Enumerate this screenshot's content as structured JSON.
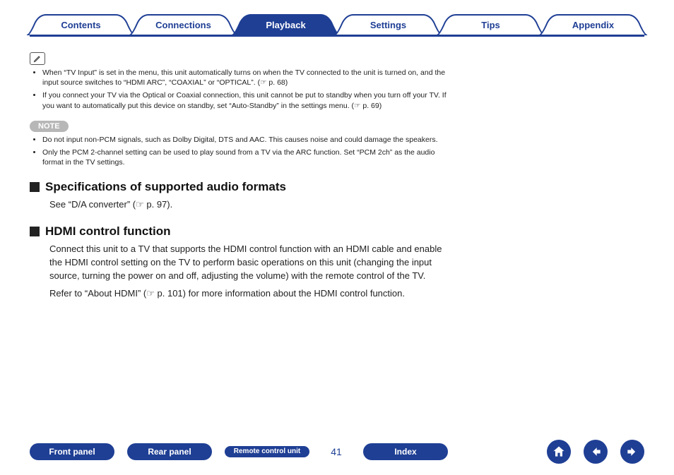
{
  "tabs": [
    {
      "label": "Contents",
      "active": false
    },
    {
      "label": "Connections",
      "active": false
    },
    {
      "label": "Playback",
      "active": true
    },
    {
      "label": "Settings",
      "active": false
    },
    {
      "label": "Tips",
      "active": false
    },
    {
      "label": "Appendix",
      "active": false
    }
  ],
  "colors": {
    "brand": "#1f3f95",
    "tab_border": "#1f3f95",
    "note_pill_bg": "#b7b7b7",
    "note_pill_fg": "#ffffff"
  },
  "info_bullets": [
    "When “TV Input” is set in the menu, this unit automatically turns on when the TV connected to the unit is turned on, and the input source switches to “HDMI ARC”, “COAXIAL” or “OPTICAL”.  (☞ p. 68)",
    "If you connect your TV via the Optical or Coaxial connection, this unit cannot be put to standby when you turn off your TV. If you want to automatically put this device on standby, set “Auto-Standby” in the settings menu.  (☞ p. 69)"
  ],
  "note_label": "NOTE",
  "note_bullets": [
    "Do not input non-PCM signals, such as Dolby Digital, DTS and AAC. This causes noise and could damage the speakers.",
    "Only the PCM 2-channel setting can be used to play sound from a TV via the ARC function. Set “PCM 2ch” as the audio format in the TV settings."
  ],
  "sections": {
    "spec_title": "Specifications of supported audio formats",
    "spec_body": "See “D/A converter” (☞ p. 97).",
    "hdmi_title": "HDMI control function",
    "hdmi_p1": "Connect this unit to a TV that supports the HDMI control function with an HDMI cable and enable the HDMI control setting on the TV to perform basic operations on this unit (changing the input source, turning the power on and off, adjusting the volume) with the remote control of the TV.",
    "hdmi_p2": "Refer to “About HDMI” (☞ p. 101) for more information about the HDMI control function."
  },
  "bottom_buttons": {
    "front": "Front panel",
    "rear": "Rear panel",
    "remote": "Remote control unit",
    "index": "Index"
  },
  "page_number": "41"
}
